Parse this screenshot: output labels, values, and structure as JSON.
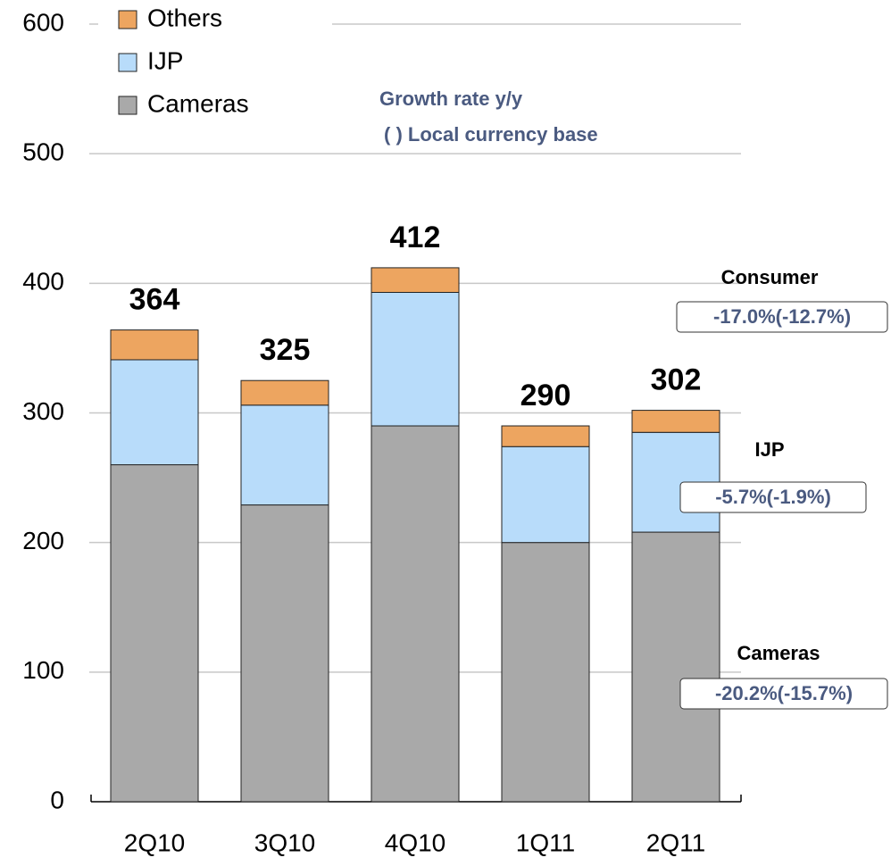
{
  "chart_data": {
    "type": "stacked_bar",
    "categories": [
      "2Q10",
      "3Q10",
      "4Q10",
      "1Q11",
      "2Q11"
    ],
    "series": [
      {
        "name": "Cameras",
        "color": "#a9a9a9",
        "values": [
          260,
          229,
          290,
          200,
          208
        ]
      },
      {
        "name": "IJP",
        "color": "#b8dcfa",
        "values": [
          81,
          77,
          103,
          74,
          77
        ]
      },
      {
        "name": "Others",
        "color": "#eda560",
        "values": [
          23,
          19,
          19,
          16,
          17
        ]
      }
    ],
    "total_labels": [
      "364",
      "325",
      "412",
      "290",
      "302"
    ],
    "ylim": [
      0,
      600
    ],
    "yticks": [
      0,
      100,
      200,
      300,
      400,
      500,
      600
    ],
    "grid": true,
    "annotations": {
      "title": "Growth rate y/y",
      "subtitle": "( ) Local currency base",
      "segments": [
        {
          "label": "Consumer",
          "rate": "-17.0%(-12.7%)"
        },
        {
          "label": "IJP",
          "rate": "-5.7%(-1.9%)"
        },
        {
          "label": "Cameras",
          "rate": "-20.2%(-15.7%)"
        }
      ]
    }
  }
}
